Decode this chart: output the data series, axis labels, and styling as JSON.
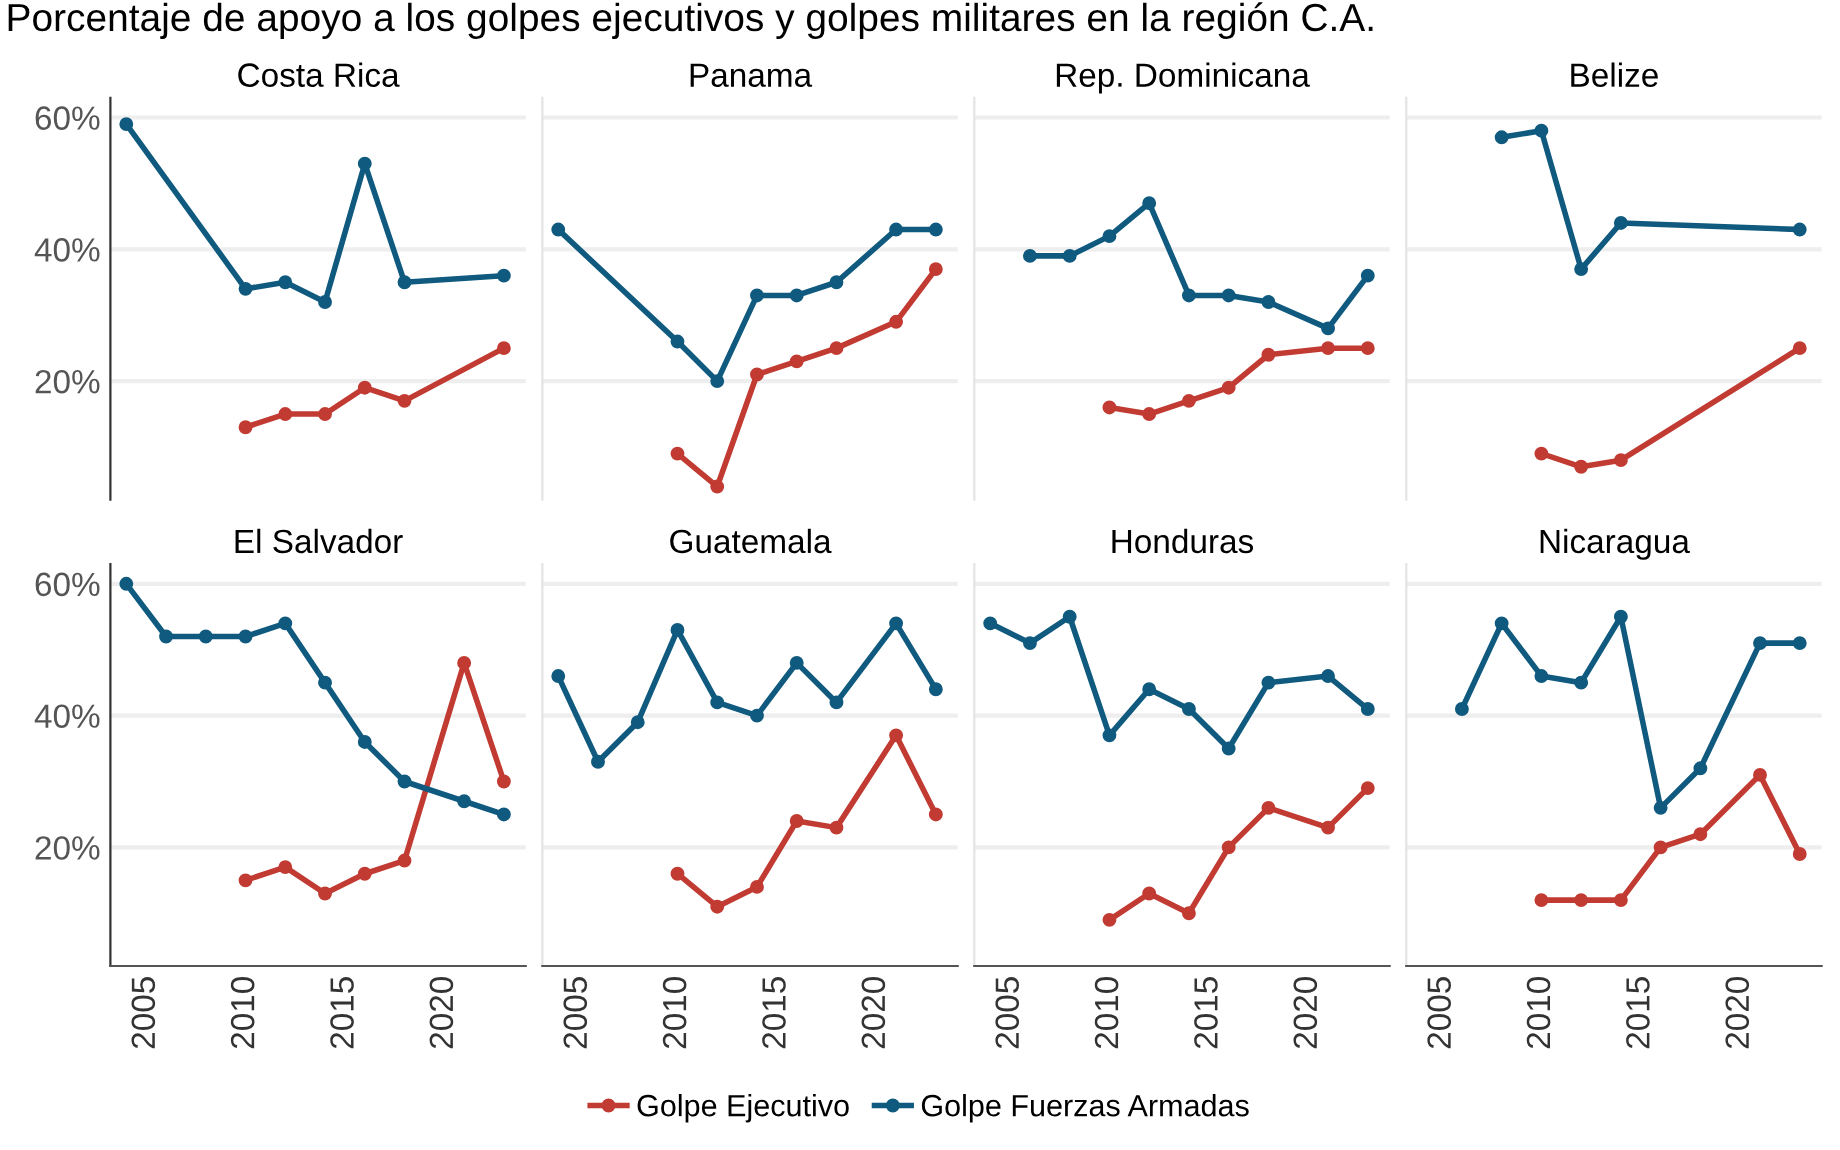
{
  "chart_data": [
    {
      "type": "line",
      "title": "Costa Rica",
      "annotations": [
        "Porcentaje de apoyo a los golpes ejecutivos y golpes militares en la región C.A."
      ],
      "legend": "bottom",
      "marker": "circle",
      "grid": "y",
      "tick_labels": "y",
      "xlim": [
        2003.2,
        2024.1
      ],
      "xticks": [
        2005,
        2010,
        2015,
        2020
      ],
      "ylim": [
        2,
        63
      ],
      "yticks": [
        {
          "value": 20,
          "label": "20%"
        },
        {
          "value": 40,
          "label": "40%"
        },
        {
          "value": 60,
          "label": "60%"
        }
      ],
      "series": [
        {
          "name": "Golpe Ejecutivo",
          "color": "#c23b33",
          "x": [
            2010,
            2012,
            2014,
            2016,
            2018,
            2023
          ],
          "values": [
            13,
            15,
            15,
            19,
            17,
            25
          ]
        },
        {
          "name": "Golpe Fuerzas Armadas",
          "color": "#0f5a7e",
          "x": [
            2004,
            2010,
            2012,
            2014,
            2016,
            2018,
            2023
          ],
          "values": [
            59,
            34,
            35,
            32,
            53,
            35,
            36
          ]
        }
      ]
    },
    {
      "type": "line",
      "title": "Panama",
      "marker": "circle",
      "grid": "y",
      "tick_labels": false,
      "xlim": [
        2003.2,
        2024.1
      ],
      "xticks": [
        2005,
        2010,
        2015,
        2020
      ],
      "ylim": [
        2,
        63
      ],
      "yticks": [
        {
          "value": 20,
          "label": "20%"
        },
        {
          "value": 40,
          "label": "40%"
        },
        {
          "value": 60,
          "label": "60%"
        }
      ],
      "series": [
        {
          "name": "Golpe Ejecutivo",
          "color": "#c23b33",
          "x": [
            2010,
            2012,
            2014,
            2016,
            2018,
            2021,
            2023
          ],
          "values": [
            9,
            4,
            21,
            23,
            25,
            29,
            37
          ]
        },
        {
          "name": "Golpe Fuerzas Armadas",
          "color": "#0f5a7e",
          "x": [
            2004,
            2010,
            2012,
            2014,
            2016,
            2018,
            2021,
            2023
          ],
          "values": [
            43,
            26,
            20,
            33,
            33,
            35,
            43,
            43
          ]
        }
      ]
    },
    {
      "type": "line",
      "title": "Rep. Dominicana",
      "marker": "circle",
      "grid": "y",
      "tick_labels": false,
      "xlim": [
        2003.2,
        2024.1
      ],
      "xticks": [
        2005,
        2010,
        2015,
        2020
      ],
      "ylim": [
        2,
        63
      ],
      "yticks": [
        {
          "value": 20,
          "label": "20%"
        },
        {
          "value": 40,
          "label": "40%"
        },
        {
          "value": 60,
          "label": "60%"
        }
      ],
      "series": [
        {
          "name": "Golpe Ejecutivo",
          "color": "#c23b33",
          "x": [
            2010,
            2012,
            2014,
            2016,
            2018,
            2021,
            2023
          ],
          "values": [
            16,
            15,
            17,
            19,
            24,
            25,
            25
          ]
        },
        {
          "name": "Golpe Fuerzas Armadas",
          "color": "#0f5a7e",
          "x": [
            2006,
            2008,
            2010,
            2012,
            2014,
            2016,
            2018,
            2021,
            2023
          ],
          "values": [
            39,
            39,
            42,
            47,
            33,
            33,
            32,
            28,
            36
          ]
        }
      ]
    },
    {
      "type": "line",
      "title": "Belize",
      "marker": "circle",
      "grid": "y",
      "tick_labels": false,
      "xlim": [
        2003.2,
        2024.1
      ],
      "xticks": [
        2005,
        2010,
        2015,
        2020
      ],
      "ylim": [
        2,
        63
      ],
      "yticks": [
        {
          "value": 20,
          "label": "20%"
        },
        {
          "value": 40,
          "label": "40%"
        },
        {
          "value": 60,
          "label": "60%"
        }
      ],
      "series": [
        {
          "name": "Golpe Ejecutivo",
          "color": "#c23b33",
          "x": [
            2010,
            2012,
            2014,
            2023
          ],
          "values": [
            9,
            7,
            8,
            25
          ]
        },
        {
          "name": "Golpe Fuerzas Armadas",
          "color": "#0f5a7e",
          "x": [
            2008,
            2010,
            2012,
            2014,
            2023
          ],
          "values": [
            57,
            58,
            37,
            44,
            43
          ]
        }
      ]
    },
    {
      "type": "line",
      "title": "El Salvador",
      "marker": "circle",
      "grid": "y",
      "xlim": [
        2003.2,
        2024.1
      ],
      "xticks": [
        2005,
        2010,
        2015,
        2020
      ],
      "ylim": [
        2,
        63
      ],
      "yticks": [
        {
          "value": 20,
          "label": "20%"
        },
        {
          "value": 40,
          "label": "40%"
        },
        {
          "value": 60,
          "label": "60%"
        }
      ],
      "series": [
        {
          "name": "Golpe Ejecutivo",
          "color": "#c23b33",
          "x": [
            2010,
            2012,
            2014,
            2016,
            2018,
            2021,
            2023
          ],
          "values": [
            15,
            17,
            13,
            16,
            18,
            48,
            30
          ]
        },
        {
          "name": "Golpe Fuerzas Armadas",
          "color": "#0f5a7e",
          "x": [
            2004,
            2006,
            2008,
            2010,
            2012,
            2014,
            2016,
            2018,
            2021,
            2023
          ],
          "values": [
            60,
            52,
            52,
            52,
            54,
            45,
            36,
            30,
            27,
            25
          ]
        }
      ]
    },
    {
      "type": "line",
      "title": "Guatemala",
      "marker": "circle",
      "grid": "y",
      "tick_labels": "x",
      "xlim": [
        2003.2,
        2024.1
      ],
      "xticks": [
        2005,
        2010,
        2015,
        2020
      ],
      "ylim": [
        2,
        63
      ],
      "yticks": [
        {
          "value": 20,
          "label": "20%"
        },
        {
          "value": 40,
          "label": "40%"
        },
        {
          "value": 60,
          "label": "60%"
        }
      ],
      "series": [
        {
          "name": "Golpe Ejecutivo",
          "color": "#c23b33",
          "x": [
            2010,
            2012,
            2014,
            2016,
            2018,
            2021,
            2023
          ],
          "values": [
            16,
            11,
            14,
            24,
            23,
            37,
            25
          ]
        },
        {
          "name": "Golpe Fuerzas Armadas",
          "color": "#0f5a7e",
          "x": [
            2004,
            2006,
            2008,
            2010,
            2012,
            2014,
            2016,
            2018,
            2021,
            2023
          ],
          "values": [
            46,
            33,
            39,
            53,
            42,
            40,
            48,
            42,
            54,
            44
          ]
        }
      ]
    },
    {
      "type": "line",
      "title": "Honduras",
      "marker": "circle",
      "grid": "y",
      "tick_labels": "x",
      "xlim": [
        2003.2,
        2024.1
      ],
      "xticks": [
        2005,
        2010,
        2015,
        2020
      ],
      "ylim": [
        2,
        63
      ],
      "yticks": [
        {
          "value": 20,
          "label": "20%"
        },
        {
          "value": 40,
          "label": "40%"
        },
        {
          "value": 60,
          "label": "60%"
        }
      ],
      "series": [
        {
          "name": "Golpe Ejecutivo",
          "color": "#c23b33",
          "x": [
            2010,
            2012,
            2014,
            2016,
            2018,
            2021,
            2023
          ],
          "values": [
            9,
            13,
            10,
            20,
            26,
            23,
            29
          ]
        },
        {
          "name": "Golpe Fuerzas Armadas",
          "color": "#0f5a7e",
          "x": [
            2004,
            2006,
            2008,
            2010,
            2012,
            2014,
            2016,
            2018,
            2021,
            2023
          ],
          "values": [
            54,
            51,
            55,
            37,
            44,
            41,
            35,
            45,
            46,
            41
          ]
        }
      ]
    },
    {
      "type": "line",
      "title": "Nicaragua",
      "marker": "circle",
      "grid": "y",
      "tick_labels": "x",
      "xlim": [
        2003.2,
        2024.1
      ],
      "xticks": [
        2005,
        2010,
        2015,
        2020
      ],
      "ylim": [
        2,
        63
      ],
      "yticks": [
        {
          "value": 20,
          "label": "20%"
        },
        {
          "value": 40,
          "label": "40%"
        },
        {
          "value": 60,
          "label": "60%"
        }
      ],
      "series": [
        {
          "name": "Golpe Ejecutivo",
          "color": "#c23b33",
          "x": [
            2010,
            2012,
            2014,
            2016,
            2018,
            2021,
            2023
          ],
          "values": [
            12,
            12,
            12,
            20,
            22,
            31,
            19
          ]
        },
        {
          "name": "Golpe Fuerzas Armadas",
          "color": "#0f5a7e",
          "x": [
            2006,
            2008,
            2010,
            2012,
            2014,
            2016,
            2018,
            2021,
            2023
          ],
          "values": [
            41,
            54,
            46,
            45,
            55,
            26,
            32,
            51,
            51
          ]
        }
      ]
    }
  ]
}
